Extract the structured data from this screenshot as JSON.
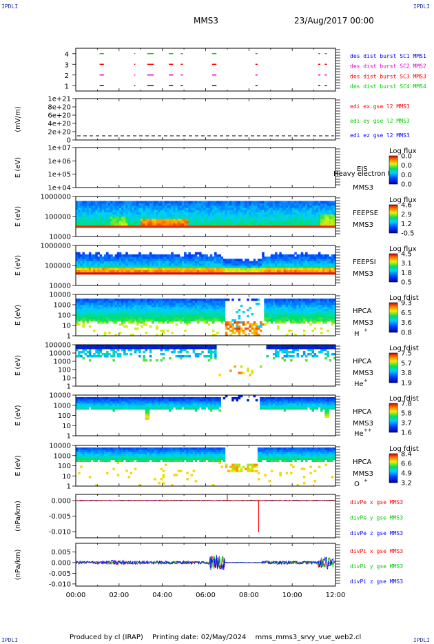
{
  "corner_tl": "IPDLI",
  "corner_tr": "IPDLI",
  "corner_bl": "IPDLI",
  "corner_br": "IPDLI",
  "header": {
    "spacecraft": "MMS3",
    "datetime": "23/Aug/2017 00:00"
  },
  "footer": {
    "produced": "Produced by cl (IRAP)",
    "printed": "Printing date: 02/May/2024",
    "script": "mms_mms3_srvy_vue_web2.cl"
  },
  "colors": {
    "blue": "#0000ff",
    "red": "#ff0000",
    "green": "#00cc00",
    "magenta": "#e000e0",
    "label_blue": "#1a2a9a"
  },
  "chart_data": [
    {
      "id": "burst",
      "type": "scatter",
      "ylim": [
        0.5,
        4.5
      ],
      "yticks": [
        "1",
        "2",
        "3",
        "4"
      ],
      "legend": [
        {
          "text": "des dist burst SC1 MMS1",
          "color": "#0000ff"
        },
        {
          "text": "des dist burst SC2 MMS2",
          "color": "#e000e0"
        },
        {
          "text": "des dist burst SC3 MMS3",
          "color": "#ff0000"
        },
        {
          "text": "des dist burst SC4 MMS4",
          "color": "#00cc00"
        }
      ],
      "intervals_hours": [
        [
          1.1,
          1.3
        ],
        [
          2.7,
          2.75
        ],
        [
          3.3,
          3.6
        ],
        [
          4.3,
          4.5
        ],
        [
          4.85,
          4.95
        ],
        [
          6.3,
          6.5
        ],
        [
          8.3,
          8.4
        ],
        [
          11.2,
          11.3
        ],
        [
          11.5,
          11.6
        ]
      ]
    },
    {
      "id": "edi",
      "type": "line",
      "ylabel": "(mV/m)",
      "yticks": [
        "0",
        "2e+20",
        "4e+20",
        "6e+20",
        "8e+20",
        "1e+21"
      ],
      "legend": [
        {
          "text": "edi ex gse l2 MMS3",
          "color": "#ff0000"
        },
        {
          "text": "edi ey gse l2 MMS3",
          "color": "#00cc00"
        },
        {
          "text": "edi ez gse l2 MMS3",
          "color": "#0000ff"
        }
      ]
    },
    {
      "id": "eis",
      "type": "heatmap",
      "ylabel": "E (eV)",
      "yticks": [
        "1e+04",
        "1e+05",
        "1e+06",
        "1e+07"
      ],
      "label": "EIS",
      "sc": "MMS3",
      "overlay": "Heavy electron to",
      "cbar_title": "Log flux",
      "cbar_ticks": [
        "0.0",
        "0.0",
        "0.0",
        "0.0"
      ]
    },
    {
      "id": "feepse",
      "type": "heatmap",
      "ylabel": "E (eV)",
      "yticks": [
        "10000",
        "100000",
        "1000000"
      ],
      "label": "FEEPSE",
      "sc": "MMS3",
      "cbar_title": "Log flux",
      "cbar_ticks": [
        "4.6",
        "2.9",
        "1.2",
        "-0.5"
      ]
    },
    {
      "id": "feepsi",
      "type": "heatmap",
      "ylabel": "E (eV)",
      "yticks": [
        "10000",
        "100000",
        "1000000"
      ],
      "label": "FEEPSI",
      "sc": "MMS3",
      "cbar_title": "Log flux",
      "cbar_ticks": [
        "4.5",
        "3.1",
        "1.8",
        "0.5"
      ]
    },
    {
      "id": "hpca_h",
      "type": "heatmap",
      "ylabel": "E (eV)",
      "yticks": [
        "1",
        "10",
        "100",
        "1000",
        "10000"
      ],
      "label": "HPCA",
      "sc": "MMS3",
      "species": "H",
      "charge": "+",
      "cbar_title": "Log fdist",
      "cbar_ticks": [
        "9.3",
        "6.5",
        "3.6",
        "0.8"
      ]
    },
    {
      "id": "hpca_he",
      "type": "heatmap",
      "ylabel": "E (eV)",
      "yticks": [
        "1",
        "10",
        "100",
        "1000",
        "10000",
        "100000"
      ],
      "label": "HPCA",
      "sc": "MMS3",
      "species": "He",
      "charge": "+",
      "cbar_title": "Log fdist",
      "cbar_ticks": [
        "7.5",
        "5.7",
        "3.8",
        "1.9"
      ]
    },
    {
      "id": "hpca_hepp",
      "type": "heatmap",
      "ylabel": "E (eV)",
      "yticks": [
        "1",
        "10",
        "100",
        "1000",
        "10000"
      ],
      "label": "HPCA",
      "sc": "MMS3",
      "species": "He",
      "charge": "++",
      "cbar_title": "Log fdist",
      "cbar_ticks": [
        "7.8",
        "5.8",
        "3.7",
        "1.6"
      ]
    },
    {
      "id": "hpca_o",
      "type": "heatmap",
      "ylabel": "E (eV)",
      "yticks": [
        "1",
        "10",
        "100",
        "1000",
        "10000"
      ],
      "label": "HPCA",
      "sc": "MMS3",
      "species": "O",
      "charge": "+",
      "cbar_title": "Log fdist",
      "cbar_ticks": [
        "8.4",
        "6.6",
        "4.9",
        "3.2"
      ]
    },
    {
      "id": "divpe",
      "type": "line",
      "ylabel": "(nPa/km)",
      "ylim": [
        -0.012,
        0.002
      ],
      "yticks": [
        "0.000",
        "-0.005",
        "-0.010"
      ],
      "legend": [
        {
          "text": "divPe x gse MMS3",
          "color": "#ff0000"
        },
        {
          "text": "divPe y gse MMS3",
          "color": "#00cc00"
        },
        {
          "text": "divPe z gse MMS3",
          "color": "#0000ff"
        }
      ],
      "spikes": [
        {
          "t": 7.0,
          "v": 0.0018
        },
        {
          "t": 8.45,
          "v": -0.0102
        }
      ]
    },
    {
      "id": "divpi",
      "type": "line",
      "ylabel": "(nPa/km)",
      "ylim": [
        -0.011,
        0.009
      ],
      "yticks": [
        "0.005",
        "0.000",
        "-0.005",
        "-0.010"
      ],
      "legend": [
        {
          "text": "divPi x gse MMS3",
          "color": "#ff0000"
        },
        {
          "text": "divPi y gse MMS3",
          "color": "#00cc00"
        },
        {
          "text": "divPi z gse MMS3",
          "color": "#0000ff"
        }
      ]
    }
  ],
  "xaxis": {
    "range_hours": [
      0,
      12
    ],
    "ticks": [
      "00:00",
      "02:00",
      "04:00",
      "06:00",
      "08:00",
      "10:00",
      "12:00"
    ]
  }
}
